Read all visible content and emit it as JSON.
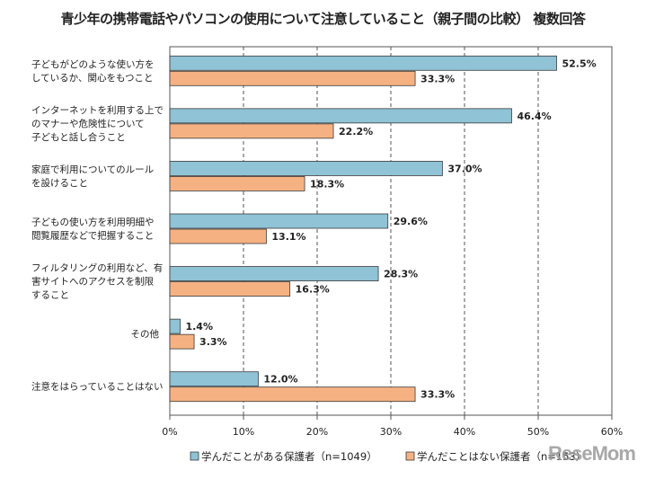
{
  "chart_data": {
    "type": "bar",
    "orientation": "horizontal",
    "title": "青少年の携帯電話やパソコンの使用について注意していること（親子間の比較） 複数回答",
    "categories": [
      [
        "子どもがどのような使い方を",
        "しているか、関心をもつこと"
      ],
      [
        "インターネットを利用する上で",
        "のマナーや危険性について",
        "子どもと話し合うこと"
      ],
      [
        "家庭で利用についてのルール",
        "を設けること"
      ],
      [
        "子どもの使い方を利用明細や",
        "閲覧履歴などで把握すること"
      ],
      [
        "フィルタリングの利用など、有",
        "害サイトへのアクセスを制限",
        "すること"
      ],
      [
        "その他"
      ],
      [
        "注意をはらっていることはない"
      ]
    ],
    "series": [
      {
        "name": "学んだことがある保護者（n=1049）",
        "color": "#8FC3D5",
        "values": [
          52.5,
          46.4,
          37.0,
          29.6,
          28.3,
          1.4,
          12.0
        ]
      },
      {
        "name": "学んだことはない保護者（n=153）",
        "color": "#F6B182",
        "values": [
          33.3,
          22.2,
          18.3,
          13.1,
          16.3,
          3.3,
          33.3
        ]
      }
    ],
    "xlim": [
      0,
      60
    ],
    "xticks": [
      "0%",
      "10%",
      "20%",
      "30%",
      "40%",
      "50%",
      "60%"
    ],
    "grid": "vertical dashed",
    "legend": "bottom",
    "value_suffix": "%"
  },
  "watermark": "ReseMom"
}
